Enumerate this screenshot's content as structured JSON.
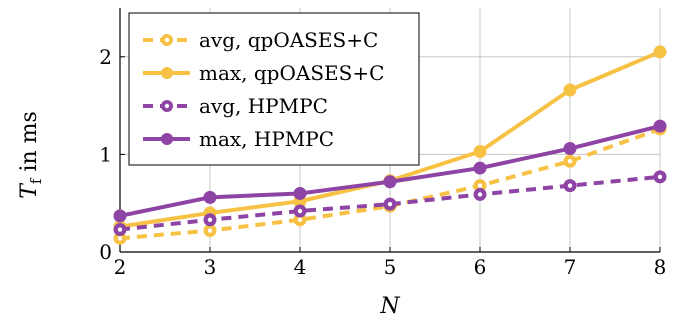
{
  "chart_data": {
    "type": "line",
    "xlabel_var": "N",
    "ylabel_var": "T",
    "ylabel_sub": "f",
    "ylabel_rest": " in ms",
    "x": [
      2,
      3,
      4,
      5,
      6,
      7,
      8
    ],
    "xlim": [
      2,
      8
    ],
    "ylim": [
      0,
      2.5
    ],
    "xticks": [
      2,
      3,
      4,
      5,
      6,
      7,
      8
    ],
    "yticks": [
      0,
      1,
      2
    ],
    "grid": true,
    "legend": "top-left",
    "series": [
      {
        "name": "avg, qpOASES+C",
        "color": "#f7c244",
        "style": "dashed",
        "values": [
          0.14,
          0.22,
          0.33,
          0.47,
          0.68,
          0.93,
          1.26
        ]
      },
      {
        "name": "max, qpOASES+C",
        "color": "#f7c244",
        "style": "solid",
        "values": [
          0.26,
          0.4,
          0.52,
          0.73,
          1.03,
          1.66,
          2.05
        ]
      },
      {
        "name": "avg, HPMPC",
        "color": "#8e44a4",
        "style": "dashed",
        "values": [
          0.23,
          0.33,
          0.42,
          0.49,
          0.59,
          0.68,
          0.77
        ]
      },
      {
        "name": "max, HPMPC",
        "color": "#8e44a4",
        "style": "solid",
        "values": [
          0.37,
          0.56,
          0.6,
          0.72,
          0.86,
          1.06,
          1.29
        ]
      }
    ]
  }
}
